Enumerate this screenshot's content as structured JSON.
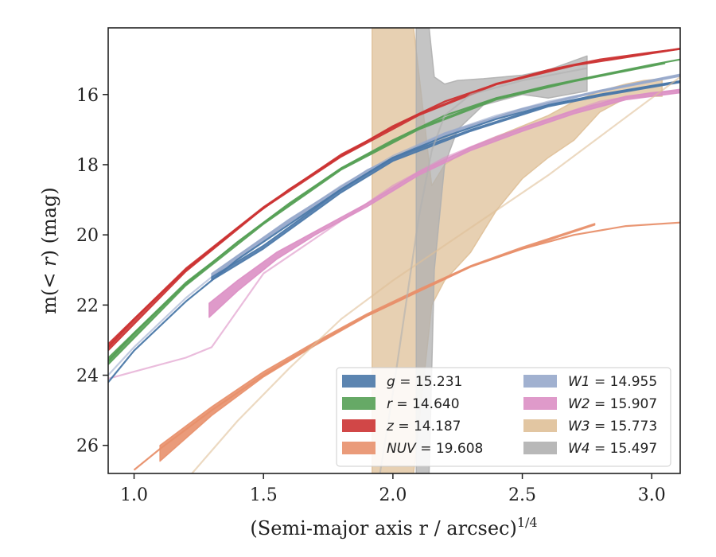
{
  "chart_data": {
    "type": "line",
    "xlabel": "(Semi-major axis r / arcsec)",
    "xlabel_exponent": "1/4",
    "ylabel_left": "m(",
    "ylabel_mid": "< r",
    "ylabel_right": ") (mag)",
    "xlim": [
      0.9,
      3.11
    ],
    "ylim": [
      26.8,
      14.1
    ],
    "y_inverted": true,
    "x_ticks": [
      1.0,
      1.5,
      2.0,
      2.5,
      3.0
    ],
    "x_tick_labels": [
      "1.0",
      "1.5",
      "2.0",
      "2.5",
      "3.0"
    ],
    "y_ticks": [
      16,
      18,
      20,
      22,
      24,
      26
    ],
    "y_tick_labels": [
      "16",
      "18",
      "20",
      "22",
      "24",
      "26"
    ],
    "grid": false,
    "legend_position": "lower-right",
    "series": [
      {
        "name": "g = 15.231",
        "symbol": "g",
        "total_mag": "15.231",
        "color": "#4a78a8",
        "fit": [
          [
            0.9,
            24.2
          ],
          [
            1.0,
            23.3
          ],
          [
            1.2,
            21.9
          ],
          [
            1.4,
            20.7
          ],
          [
            1.6,
            19.7
          ],
          [
            1.8,
            18.7
          ],
          [
            2.0,
            17.8
          ],
          [
            2.2,
            17.2
          ],
          [
            2.4,
            16.7
          ],
          [
            2.6,
            16.3
          ],
          [
            2.8,
            16.0
          ],
          [
            3.0,
            15.75
          ],
          [
            3.11,
            15.62
          ]
        ],
        "band": [
          [
            1.3,
            21.2,
            21.3
          ],
          [
            1.5,
            20.3,
            20.4
          ],
          [
            1.8,
            18.7,
            18.8
          ],
          [
            2.0,
            17.8,
            17.9
          ],
          [
            2.3,
            17.0,
            17.05
          ],
          [
            2.6,
            16.3,
            16.35
          ],
          [
            2.8,
            16.0,
            16.05
          ],
          [
            3.11,
            15.62,
            15.66
          ]
        ]
      },
      {
        "name": "r = 14.640",
        "symbol": "r",
        "total_mag": "14.640",
        "color": "#55a055",
        "fit": [
          [
            0.9,
            23.6
          ],
          [
            1.0,
            22.8
          ],
          [
            1.2,
            21.4
          ],
          [
            1.4,
            20.2
          ],
          [
            1.6,
            19.1
          ],
          [
            1.8,
            18.1
          ],
          [
            2.0,
            17.3
          ],
          [
            2.2,
            16.6
          ],
          [
            2.4,
            16.1
          ],
          [
            2.6,
            15.75
          ],
          [
            2.8,
            15.45
          ],
          [
            3.0,
            15.15
          ],
          [
            3.11,
            15.0
          ]
        ],
        "band": [
          [
            0.9,
            23.5,
            23.7
          ],
          [
            1.2,
            21.35,
            21.45
          ],
          [
            1.5,
            19.65,
            19.7
          ],
          [
            1.8,
            18.1,
            18.15
          ],
          [
            2.1,
            16.95,
            17.0
          ],
          [
            2.4,
            16.1,
            16.15
          ],
          [
            2.7,
            15.6,
            15.63
          ],
          [
            3.05,
            15.1,
            15.12
          ]
        ]
      },
      {
        "name": "z = 14.187",
        "symbol": "z",
        "total_mag": "14.187",
        "color": "#cc3333",
        "fit": [
          [
            0.9,
            23.2
          ],
          [
            1.0,
            22.4
          ],
          [
            1.2,
            21.0
          ],
          [
            1.4,
            19.8
          ],
          [
            1.6,
            18.7
          ],
          [
            1.8,
            17.75
          ],
          [
            2.0,
            16.9
          ],
          [
            2.2,
            16.2
          ],
          [
            2.4,
            15.7
          ],
          [
            2.6,
            15.3
          ],
          [
            2.8,
            15.0
          ],
          [
            3.0,
            14.8
          ],
          [
            3.11,
            14.7
          ]
        ],
        "band": [
          [
            0.9,
            23.1,
            23.3
          ],
          [
            1.2,
            20.95,
            21.05
          ],
          [
            1.5,
            19.2,
            19.25
          ],
          [
            1.8,
            17.7,
            17.78
          ],
          [
            2.1,
            16.55,
            16.6
          ],
          [
            2.4,
            15.68,
            15.72
          ],
          [
            2.7,
            15.15,
            15.18
          ],
          [
            3.11,
            14.68,
            14.71
          ]
        ]
      },
      {
        "name": "NUV = 19.608",
        "symbol": "NUV",
        "total_mag": "19.608",
        "color": "#e8906c",
        "fit": [
          [
            1.0,
            26.7
          ],
          [
            1.1,
            26.1
          ],
          [
            1.3,
            25.0
          ],
          [
            1.5,
            24.0
          ],
          [
            1.7,
            23.1
          ],
          [
            1.9,
            22.3
          ],
          [
            2.1,
            21.6
          ],
          [
            2.3,
            20.9
          ],
          [
            2.5,
            20.4
          ],
          [
            2.7,
            20.0
          ],
          [
            2.9,
            19.75
          ],
          [
            3.11,
            19.65
          ]
        ],
        "band": [
          [
            1.1,
            26.0,
            26.45
          ],
          [
            1.3,
            24.9,
            25.15
          ],
          [
            1.5,
            23.9,
            24.05
          ],
          [
            1.7,
            23.05,
            23.15
          ],
          [
            1.9,
            22.25,
            22.32
          ],
          [
            2.1,
            21.55,
            21.62
          ],
          [
            2.3,
            20.88,
            20.92
          ],
          [
            2.5,
            20.35,
            20.4
          ],
          [
            2.78,
            19.68,
            19.72
          ]
        ]
      },
      {
        "name": "W1 = 14.955",
        "symbol": "W1",
        "total_mag": "14.955",
        "color": "#97a8cb",
        "fit": [
          [
            0.9,
            24.0
          ],
          [
            1.0,
            23.2
          ],
          [
            1.2,
            21.8
          ],
          [
            1.4,
            20.6
          ],
          [
            1.6,
            19.6
          ],
          [
            1.8,
            18.6
          ],
          [
            2.0,
            17.75
          ],
          [
            2.2,
            17.1
          ],
          [
            2.4,
            16.6
          ],
          [
            2.6,
            16.2
          ],
          [
            2.8,
            15.9
          ],
          [
            3.0,
            15.6
          ],
          [
            3.11,
            15.45
          ]
        ],
        "band": [
          [
            1.3,
            21.1,
            21.2
          ],
          [
            1.6,
            19.55,
            19.65
          ],
          [
            1.9,
            18.15,
            18.25
          ],
          [
            2.2,
            17.1,
            17.15
          ],
          [
            2.5,
            16.4,
            16.45
          ],
          [
            2.8,
            15.88,
            15.92
          ],
          [
            3.11,
            15.42,
            15.48
          ]
        ]
      },
      {
        "name": "W2 = 15.907",
        "symbol": "W2",
        "total_mag": "15.907",
        "color": "#dc8fc4",
        "fit": [
          [
            0.9,
            24.1
          ],
          [
            1.0,
            23.9
          ],
          [
            1.2,
            23.5
          ],
          [
            1.3,
            23.2
          ],
          [
            1.5,
            21.1
          ],
          [
            1.8,
            19.6
          ],
          [
            2.0,
            18.6
          ],
          [
            2.2,
            17.8
          ],
          [
            2.4,
            17.2
          ],
          [
            2.6,
            16.7
          ],
          [
            2.8,
            16.2
          ],
          [
            3.0,
            15.95
          ],
          [
            3.11,
            15.9
          ]
        ],
        "band": [
          [
            1.29,
            21.95,
            22.35
          ],
          [
            1.4,
            21.3,
            21.6
          ],
          [
            1.55,
            20.5,
            20.7
          ],
          [
            1.7,
            19.9,
            20.0
          ],
          [
            1.9,
            19.1,
            19.2
          ],
          [
            2.1,
            18.2,
            18.3
          ],
          [
            2.3,
            17.5,
            17.6
          ],
          [
            2.5,
            16.95,
            17.05
          ],
          [
            2.7,
            16.45,
            16.55
          ],
          [
            2.9,
            16.05,
            16.15
          ],
          [
            3.11,
            15.85,
            15.95
          ]
        ]
      },
      {
        "name": "W3 = 15.773",
        "symbol": "W3",
        "total_mag": "15.773",
        "color": "#dfc098",
        "fit": [
          [
            1.2,
            27.0
          ],
          [
            1.4,
            25.3
          ],
          [
            1.6,
            23.8
          ],
          [
            1.8,
            22.4
          ],
          [
            2.0,
            21.3
          ],
          [
            2.2,
            20.3
          ],
          [
            2.4,
            19.3
          ],
          [
            2.6,
            18.3
          ],
          [
            2.8,
            17.2
          ],
          [
            3.0,
            16.1
          ],
          [
            3.11,
            15.5
          ]
        ],
        "band": [
          [
            1.92,
            14.1,
            26.8
          ],
          [
            2.08,
            14.1,
            26.8
          ],
          [
            2.15,
            18.6,
            22.0
          ],
          [
            2.2,
            18.0,
            21.3
          ],
          [
            2.3,
            17.5,
            20.5
          ],
          [
            2.4,
            17.2,
            19.3
          ],
          [
            2.5,
            16.9,
            18.4
          ],
          [
            2.6,
            16.6,
            17.8
          ],
          [
            2.7,
            16.2,
            17.3
          ],
          [
            2.8,
            15.9,
            16.5
          ],
          [
            2.9,
            15.7,
            16.1
          ],
          [
            2.97,
            15.6,
            16.05
          ],
          [
            3.04,
            15.55,
            16.05
          ]
        ]
      },
      {
        "name": "W4 = 15.497",
        "symbol": "W4",
        "total_mag": "15.497",
        "color": "#b0b0b0",
        "fit": [
          [
            1.95,
            26.8
          ],
          [
            2.0,
            24.5
          ],
          [
            2.05,
            22.0
          ],
          [
            2.1,
            19.5
          ],
          [
            2.15,
            17.6
          ],
          [
            2.2,
            16.6
          ],
          [
            2.3,
            16.0
          ],
          [
            2.5,
            15.6
          ],
          [
            2.75,
            15.25
          ]
        ],
        "band": [
          [
            2.09,
            14.1,
            26.8
          ],
          [
            2.14,
            14.1,
            26.8
          ],
          [
            2.16,
            15.5,
            21.0
          ],
          [
            2.2,
            15.7,
            18.0
          ],
          [
            2.25,
            15.6,
            17.0
          ],
          [
            2.35,
            15.55,
            16.3
          ],
          [
            2.5,
            15.45,
            16.0
          ],
          [
            2.6,
            15.3,
            16.1
          ],
          [
            2.75,
            14.9,
            15.9
          ]
        ]
      }
    ]
  }
}
